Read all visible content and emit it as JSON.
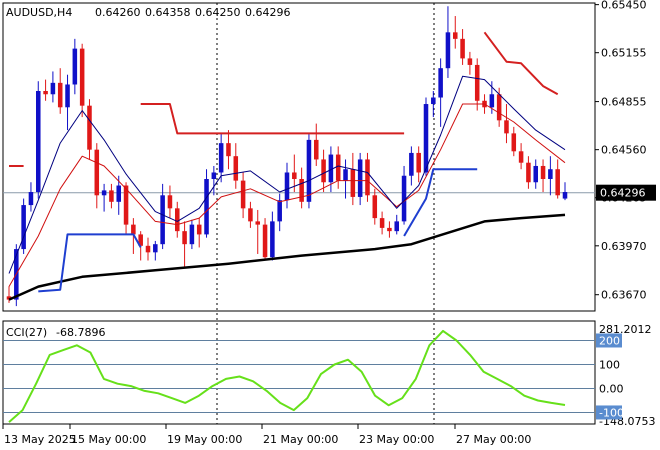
{
  "chart_data": [
    {
      "type": "candlestick",
      "title": "AUDUSD,H4",
      "ohlc_readout": {
        "open": "0.64260",
        "high": "0.64358",
        "low": "0.64250",
        "close": "0.64296"
      },
      "last_price_label": "0.64296",
      "last_price": 0.64296,
      "ylim": [
        0.6357,
        0.6546
      ],
      "y_ticks": [
        "0.65450",
        "0.65155",
        "0.64855",
        "0.64560",
        "0.64265",
        "0.63970",
        "0.63670"
      ],
      "x_ticks": [
        "13 May 2025",
        "15 May 00:00",
        "19 May 00:00",
        "21 May 00:00",
        "23 May 00:00",
        "27 May 00:00"
      ],
      "colors": {
        "bull": "#1010c8",
        "bear": "#e01818",
        "sma_fast": "#000080",
        "ema": "#d01010",
        "sma_slow": "#000000",
        "stops_bull": "#1f3fd0",
        "stops_bear": "#d42020"
      },
      "candles": [
        [
          0.6366,
          0.6372,
          0.6362,
          0.6364
        ],
        [
          0.6364,
          0.6398,
          0.636,
          0.6395
        ],
        [
          0.6395,
          0.6426,
          0.6392,
          0.6422
        ],
        [
          0.6422,
          0.6436,
          0.6418,
          0.643
        ],
        [
          0.643,
          0.6498,
          0.6426,
          0.6492
        ],
        [
          0.6492,
          0.6499,
          0.6486,
          0.649
        ],
        [
          0.649,
          0.6504,
          0.6485,
          0.6497
        ],
        [
          0.6497,
          0.6506,
          0.6478,
          0.6482
        ],
        [
          0.6482,
          0.6502,
          0.6468,
          0.6496
        ],
        [
          0.6496,
          0.6524,
          0.649,
          0.6518
        ],
        [
          0.6518,
          0.6521,
          0.6476,
          0.6483
        ],
        [
          0.6483,
          0.6487,
          0.645,
          0.6456
        ],
        [
          0.6456,
          0.646,
          0.642,
          0.6428
        ],
        [
          0.6428,
          0.6435,
          0.6418,
          0.6431
        ],
        [
          0.6431,
          0.6435,
          0.642,
          0.6424
        ],
        [
          0.6424,
          0.644,
          0.6416,
          0.6434
        ],
        [
          0.6434,
          0.6436,
          0.6404,
          0.641
        ],
        [
          0.641,
          0.6414,
          0.6392,
          0.6404
        ],
        [
          0.6404,
          0.6406,
          0.6388,
          0.6397
        ],
        [
          0.6397,
          0.6402,
          0.6388,
          0.6393
        ],
        [
          0.6393,
          0.64,
          0.6388,
          0.6398
        ],
        [
          0.6398,
          0.6435,
          0.6395,
          0.6428
        ],
        [
          0.6428,
          0.6434,
          0.6414,
          0.642
        ],
        [
          0.642,
          0.6424,
          0.6402,
          0.6406
        ],
        [
          0.6406,
          0.6412,
          0.6384,
          0.6398
        ],
        [
          0.6398,
          0.6413,
          0.6395,
          0.641
        ],
        [
          0.641,
          0.6414,
          0.6396,
          0.6404
        ],
        [
          0.6404,
          0.6444,
          0.6402,
          0.6438
        ],
        [
          0.6438,
          0.6446,
          0.6428,
          0.6442
        ],
        [
          0.6442,
          0.6466,
          0.6436,
          0.646
        ],
        [
          0.646,
          0.6468,
          0.6444,
          0.6452
        ],
        [
          0.6452,
          0.646,
          0.6432,
          0.6437
        ],
        [
          0.6437,
          0.6442,
          0.6414,
          0.642
        ],
        [
          0.642,
          0.6424,
          0.6408,
          0.6412
        ],
        [
          0.6412,
          0.6419,
          0.6392,
          0.641
        ],
        [
          0.641,
          0.6414,
          0.6388,
          0.639
        ],
        [
          0.639,
          0.6418,
          0.6388,
          0.6412
        ],
        [
          0.6412,
          0.6429,
          0.6406,
          0.6425
        ],
        [
          0.6425,
          0.6448,
          0.642,
          0.6442
        ],
        [
          0.6442,
          0.6453,
          0.643,
          0.6438
        ],
        [
          0.6438,
          0.6445,
          0.642,
          0.6424
        ],
        [
          0.6424,
          0.6466,
          0.642,
          0.6462
        ],
        [
          0.6462,
          0.6472,
          0.6446,
          0.645
        ],
        [
          0.645,
          0.6456,
          0.643,
          0.6436
        ],
        [
          0.6436,
          0.6458,
          0.643,
          0.6453
        ],
        [
          0.6453,
          0.6458,
          0.6432,
          0.6437
        ],
        [
          0.6437,
          0.645,
          0.6426,
          0.6444
        ],
        [
          0.6444,
          0.6454,
          0.6422,
          0.6427
        ],
        [
          0.6427,
          0.6454,
          0.6422,
          0.645
        ],
        [
          0.645,
          0.6454,
          0.6424,
          0.6428
        ],
        [
          0.6428,
          0.6432,
          0.641,
          0.6414
        ],
        [
          0.6414,
          0.6418,
          0.6404,
          0.6408
        ],
        [
          0.6408,
          0.6412,
          0.6402,
          0.6406
        ],
        [
          0.6406,
          0.6416,
          0.6404,
          0.6412
        ],
        [
          0.6412,
          0.6446,
          0.641,
          0.644
        ],
        [
          0.644,
          0.6458,
          0.6434,
          0.6454
        ],
        [
          0.6454,
          0.6458,
          0.6436,
          0.6442
        ],
        [
          0.6442,
          0.6488,
          0.644,
          0.6484
        ],
        [
          0.6484,
          0.6492,
          0.6476,
          0.6488
        ],
        [
          0.6488,
          0.6512,
          0.647,
          0.6506
        ],
        [
          0.6506,
          0.6544,
          0.65,
          0.6528
        ],
        [
          0.6528,
          0.6538,
          0.6518,
          0.6524
        ],
        [
          0.6524,
          0.653,
          0.6508,
          0.6512
        ],
        [
          0.6512,
          0.6516,
          0.6502,
          0.6508
        ],
        [
          0.6508,
          0.6512,
          0.648,
          0.6486
        ],
        [
          0.6486,
          0.649,
          0.6478,
          0.6482
        ],
        [
          0.6482,
          0.6498,
          0.6478,
          0.649
        ],
        [
          0.649,
          0.6494,
          0.647,
          0.6474
        ],
        [
          0.6474,
          0.6484,
          0.646,
          0.6466
        ],
        [
          0.6466,
          0.647,
          0.6452,
          0.6455
        ],
        [
          0.6455,
          0.646,
          0.6444,
          0.6448
        ],
        [
          0.6448,
          0.6452,
          0.6432,
          0.6436
        ],
        [
          0.6436,
          0.645,
          0.6432,
          0.6446
        ],
        [
          0.6446,
          0.645,
          0.643,
          0.6438
        ],
        [
          0.6438,
          0.6452,
          0.6428,
          0.6444
        ],
        [
          0.6444,
          0.645,
          0.6426,
          0.6428
        ],
        [
          0.6426,
          0.6436,
          0.6425,
          0.643
        ]
      ],
      "sma_fast": [
        [
          0,
          0.638
        ],
        [
          4,
          0.6425
        ],
        [
          7,
          0.646
        ],
        [
          10,
          0.648
        ],
        [
          13,
          0.6462
        ],
        [
          16,
          0.6441
        ],
        [
          20,
          0.6418
        ],
        [
          23,
          0.6412
        ],
        [
          26,
          0.642
        ],
        [
          29,
          0.644
        ],
        [
          33,
          0.6443
        ],
        [
          37,
          0.643
        ],
        [
          41,
          0.6437
        ],
        [
          45,
          0.6446
        ],
        [
          49,
          0.6442
        ],
        [
          53,
          0.642
        ],
        [
          56,
          0.6434
        ],
        [
          59,
          0.6465
        ],
        [
          62,
          0.6501
        ],
        [
          65,
          0.6499
        ],
        [
          69,
          0.6481
        ],
        [
          72,
          0.6468
        ],
        [
          76,
          0.6456
        ]
      ],
      "ema": [
        [
          0,
          0.6372
        ],
        [
          4,
          0.6403
        ],
        [
          7,
          0.6432
        ],
        [
          10,
          0.6452
        ],
        [
          13,
          0.6446
        ],
        [
          16,
          0.6432
        ],
        [
          20,
          0.6412
        ],
        [
          23,
          0.641
        ],
        [
          26,
          0.6414
        ],
        [
          29,
          0.6427
        ],
        [
          33,
          0.6432
        ],
        [
          37,
          0.6424
        ],
        [
          41,
          0.6428
        ],
        [
          45,
          0.6437
        ],
        [
          49,
          0.6437
        ],
        [
          53,
          0.6421
        ],
        [
          56,
          0.6431
        ],
        [
          59,
          0.6456
        ],
        [
          62,
          0.6484
        ],
        [
          65,
          0.6484
        ],
        [
          69,
          0.6473
        ],
        [
          72,
          0.6462
        ],
        [
          76,
          0.6448
        ]
      ],
      "sma_slow": [
        [
          0,
          0.6364
        ],
        [
          4,
          0.6372
        ],
        [
          10,
          0.6378
        ],
        [
          20,
          0.6382
        ],
        [
          30,
          0.6386
        ],
        [
          40,
          0.6391
        ],
        [
          50,
          0.6395
        ],
        [
          55,
          0.6398
        ],
        [
          60,
          0.6405
        ],
        [
          65,
          0.6412
        ],
        [
          70,
          0.6414
        ],
        [
          76,
          0.6416
        ]
      ],
      "stops": [
        {
          "color": "#d42020",
          "points": [
            [
              0,
              0.6446
            ],
            [
              2,
              0.6446
            ]
          ]
        },
        {
          "color": "#1f3fd0",
          "points": [
            [
              4,
              0.6369
            ],
            [
              7,
              0.637
            ],
            [
              8,
              0.6404
            ],
            [
              17,
              0.6404
            ],
            [
              18,
              0.6396
            ]
          ]
        },
        {
          "color": "#d42020",
          "points": [
            [
              18,
              0.6484
            ],
            [
              22,
              0.6484
            ],
            [
              23,
              0.6466
            ],
            [
              54,
              0.6466
            ]
          ]
        },
        {
          "color": "#1f3fd0",
          "points": [
            [
              54,
              0.6403
            ],
            [
              57,
              0.6426
            ],
            [
              58,
              0.6444
            ],
            [
              64,
              0.6444
            ]
          ]
        },
        {
          "color": "#d42020",
          "points": [
            [
              65,
              0.6528
            ],
            [
              68,
              0.651
            ],
            [
              70,
              0.6509
            ],
            [
              73,
              0.6495
            ],
            [
              75,
              0.649
            ]
          ]
        }
      ]
    },
    {
      "type": "line",
      "title": "CCI(27)",
      "value_label": "-68.7896",
      "ylim": [
        -148.0753,
        281.2012
      ],
      "range_labels": [
        "281.2012",
        "-148.0753"
      ],
      "levels": [
        {
          "label": "200",
          "value": 200,
          "boxed": true
        },
        {
          "label": "100",
          "value": 100,
          "boxed": false
        },
        {
          "label": "0.00",
          "value": 0,
          "boxed": false
        },
        {
          "label": "-100",
          "value": -100,
          "boxed": true
        }
      ],
      "series": [
        {
          "color": "#66e01a",
          "points": [
            [
              0,
              -140
            ],
            [
              2,
              -90
            ],
            [
              4,
              20
            ],
            [
              6,
              140
            ],
            [
              8,
              160
            ],
            [
              10,
              180
            ],
            [
              12,
              150
            ],
            [
              14,
              40
            ],
            [
              16,
              20
            ],
            [
              18,
              10
            ],
            [
              20,
              -10
            ],
            [
              22,
              -20
            ],
            [
              24,
              -40
            ],
            [
              26,
              -60
            ],
            [
              28,
              -30
            ],
            [
              30,
              10
            ],
            [
              32,
              40
            ],
            [
              34,
              50
            ],
            [
              36,
              30
            ],
            [
              38,
              -10
            ],
            [
              40,
              -60
            ],
            [
              42,
              -90
            ],
            [
              44,
              -40
            ],
            [
              46,
              60
            ],
            [
              48,
              100
            ],
            [
              50,
              120
            ],
            [
              52,
              70
            ],
            [
              54,
              -30
            ],
            [
              56,
              -70
            ],
            [
              58,
              -40
            ],
            [
              60,
              40
            ],
            [
              62,
              180
            ],
            [
              64,
              240
            ],
            [
              66,
              200
            ],
            [
              68,
              140
            ],
            [
              70,
              70
            ],
            [
              72,
              40
            ],
            [
              74,
              10
            ],
            [
              76,
              -30
            ],
            [
              78,
              -50
            ],
            [
              80,
              -60
            ],
            [
              82,
              -69
            ]
          ]
        }
      ]
    }
  ]
}
